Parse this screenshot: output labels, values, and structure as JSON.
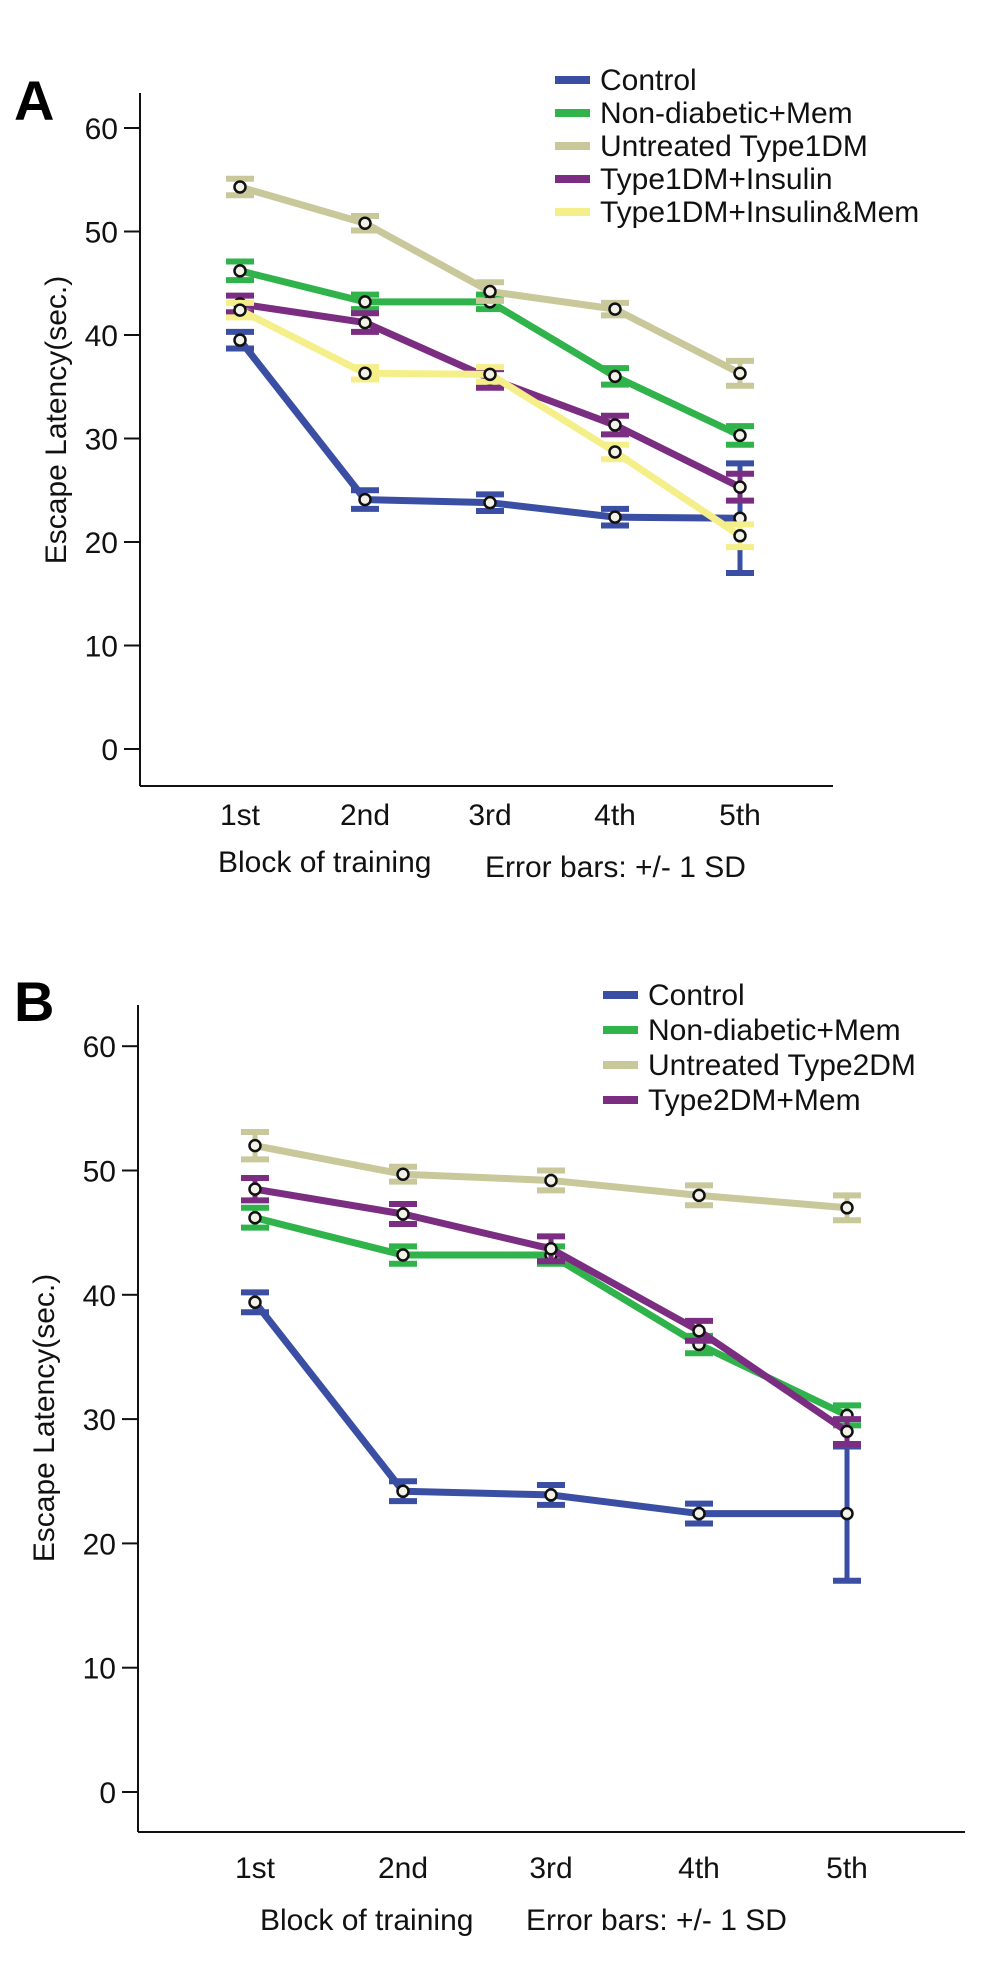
{
  "chart_data": [
    {
      "panel": "A",
      "type": "line",
      "categories": [
        "1st",
        "2nd",
        "3rd",
        "4th",
        "5th"
      ],
      "ylabel": "Escape Latency(sec.)",
      "xlabel": "Block of training",
      "note": "Error bars: +/- 1 SD",
      "ylim": [
        0,
        60
      ],
      "yticks": [
        0,
        10,
        20,
        30,
        40,
        50,
        60
      ],
      "legend_position": "top-right",
      "series": [
        {
          "name": "Control",
          "color": "#3a4fa3",
          "values": [
            39.5,
            24.1,
            23.8,
            22.4,
            22.3
          ],
          "sd": [
            0.8,
            0.9,
            0.8,
            0.8,
            5.3
          ]
        },
        {
          "name": "Non-diabetic+Mem",
          "color": "#2fb34a",
          "values": [
            46.2,
            43.2,
            43.2,
            36.0,
            30.3
          ],
          "sd": [
            0.9,
            0.7,
            0.7,
            0.8,
            0.9
          ]
        },
        {
          "name": "Untreated Type1DM",
          "color": "#c8c89a",
          "values": [
            54.3,
            50.8,
            44.2,
            42.5,
            36.3
          ],
          "sd": [
            0.8,
            0.7,
            0.9,
            0.6,
            1.2
          ]
        },
        {
          "name": "Type1DM+Insulin",
          "color": "#7b2d82",
          "values": [
            43.0,
            41.2,
            35.8,
            31.3,
            25.3
          ],
          "sd": [
            0.8,
            0.9,
            0.9,
            0.9,
            1.3
          ]
        },
        {
          "name": "Type1DM+Insulin&Mem",
          "color": "#f5ef8a",
          "values": [
            42.4,
            36.3,
            36.2,
            28.7,
            20.6
          ],
          "sd": [
            0.7,
            0.6,
            0.7,
            0.7,
            1.1
          ]
        }
      ]
    },
    {
      "panel": "B",
      "type": "line",
      "categories": [
        "1st",
        "2nd",
        "3rd",
        "4th",
        "5th"
      ],
      "ylabel": "Escape Latency(sec.)",
      "xlabel": "Block of training",
      "note": "Error bars: +/- 1 SD",
      "ylim": [
        0,
        60
      ],
      "yticks": [
        0,
        10,
        20,
        30,
        40,
        50,
        60
      ],
      "legend_position": "top-right",
      "series": [
        {
          "name": "Control",
          "color": "#3a4fa3",
          "values": [
            39.4,
            24.2,
            23.9,
            22.4,
            22.4
          ],
          "sd": [
            0.8,
            0.8,
            0.8,
            0.8,
            5.4
          ]
        },
        {
          "name": "Non-diabetic+Mem",
          "color": "#2fb34a",
          "values": [
            46.2,
            43.2,
            43.2,
            36.0,
            30.3
          ],
          "sd": [
            0.8,
            0.7,
            0.7,
            0.7,
            0.8
          ]
        },
        {
          "name": "Untreated Type2DM",
          "color": "#c8c89a",
          "values": [
            52.0,
            49.7,
            49.2,
            48.0,
            47.0
          ],
          "sd": [
            1.1,
            0.6,
            0.8,
            0.8,
            1.0
          ]
        },
        {
          "name": "Type2DM+Mem",
          "color": "#7b2d82",
          "values": [
            48.5,
            46.5,
            43.7,
            37.1,
            29.0
          ],
          "sd": [
            0.9,
            0.8,
            1.0,
            0.8,
            1.0
          ]
        }
      ]
    }
  ]
}
